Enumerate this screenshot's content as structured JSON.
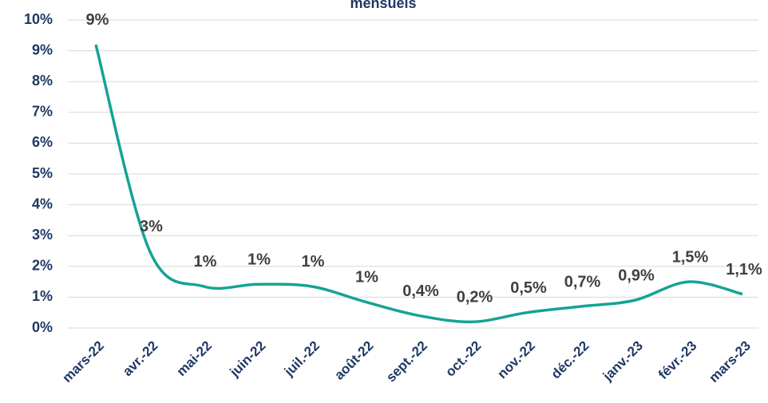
{
  "chart_data": {
    "type": "line",
    "title": "mensuels",
    "categories": [
      "mars-22",
      "avr.-22",
      "mai-22",
      "juin-22",
      "juil.-22",
      "août-22",
      "sept.-22",
      "oct.-22",
      "nov.-22",
      "déc.-22",
      "janv.-23",
      "févr.-23",
      "mars-23"
    ],
    "series": [
      {
        "name": "mensuels",
        "color": "#16a394",
        "values": [
          9.2,
          2.5,
          1.35,
          1.42,
          1.35,
          0.85,
          0.4,
          0.2,
          0.5,
          0.7,
          0.9,
          1.5,
          1.1
        ],
        "value_labels": [
          "9%",
          "3%",
          "1%",
          "1%",
          "1%",
          "1%",
          "0,4%",
          "0,2%",
          "0,5%",
          "0,7%",
          "0,9%",
          "1,5%",
          "1,1%"
        ]
      }
    ],
    "ylim": [
      0,
      10
    ],
    "yticks": [
      {
        "value": 0,
        "label": "0%"
      },
      {
        "value": 1,
        "label": "1%"
      },
      {
        "value": 2,
        "label": "2%"
      },
      {
        "value": 3,
        "label": "3%"
      },
      {
        "value": 4,
        "label": "4%"
      },
      {
        "value": 5,
        "label": "5%"
      },
      {
        "value": 6,
        "label": "6%"
      },
      {
        "value": 7,
        "label": "7%"
      },
      {
        "value": 8,
        "label": "8%"
      },
      {
        "value": 9,
        "label": "9%"
      },
      {
        "value": 10,
        "label": "10%"
      }
    ],
    "grid": true
  }
}
